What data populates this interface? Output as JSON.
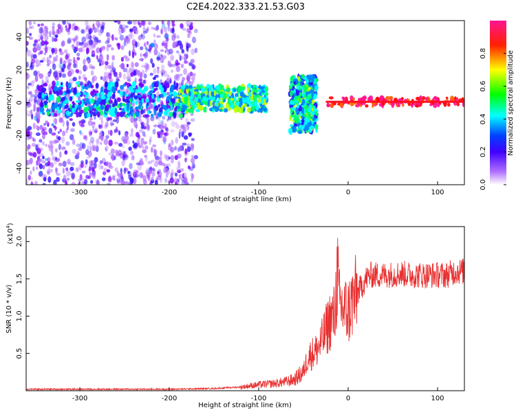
{
  "figure_title": "C2E4.2022.333.21.53.G03",
  "chart_data": [
    {
      "type": "heatmap",
      "title": "",
      "xlabel": "Height of straight line (km)",
      "ylabel": "Frequency (Hz)",
      "xlim": [
        -360,
        130
      ],
      "ylim": [
        -50,
        50
      ],
      "xticks": [
        -300,
        -200,
        -100,
        0,
        100
      ],
      "yticks": [
        -40,
        -20,
        0,
        20,
        40
      ],
      "grid": false,
      "colorbar": {
        "label": "Normalized spectral amplitude",
        "range": [
          0,
          1
        ],
        "ticks": [
          0.0,
          0.2,
          0.4,
          0.6,
          0.8
        ],
        "tick_labels": [
          "0.0",
          "0.2",
          "0.4",
          "0.6",
          "0.8"
        ],
        "colormap": [
          "#ffffff",
          "#8000ff",
          "#0000ff",
          "#00ffff",
          "#00ff00",
          "#ffff00",
          "#ff0000",
          "#ff1493"
        ]
      },
      "description_points": [
        {
          "x_range": [
            -360,
            -170
          ],
          "y_range": [
            -50,
            50
          ],
          "level": 0.15
        },
        {
          "x_range": [
            -345,
            -180
          ],
          "y_range": [
            -8,
            12
          ],
          "level": 0.35
        },
        {
          "x_range": [
            -190,
            -90
          ],
          "y_range": [
            -5,
            10
          ],
          "level": 0.5
        },
        {
          "x_range": [
            -65,
            -35
          ],
          "y_range": [
            -18,
            16
          ],
          "level": 0.45
        },
        {
          "x_range": [
            -25,
            130
          ],
          "y_range": [
            -2,
            3
          ],
          "level": 0.95
        }
      ]
    },
    {
      "type": "line",
      "title": "",
      "xlabel": "Height of straight line (km)",
      "ylabel": "SNR (10 * v/v)",
      "yscale_label": "(x10",
      "yscale_exp": "4",
      "yscale_close": ")",
      "xlim": [
        -360,
        130
      ],
      "ylim": [
        0,
        2.2
      ],
      "xticks": [
        -300,
        -200,
        -100,
        0,
        100
      ],
      "yticks": [
        0.5,
        1.0,
        1.5,
        2.0
      ],
      "ytick_labels": [
        "0.5",
        "1.0",
        "1.5",
        "2.0"
      ],
      "grid": false,
      "series": [
        {
          "color": "#e83030",
          "x": [
            -360,
            -300,
            -250,
            -200,
            -150,
            -120,
            -100,
            -80,
            -70,
            -60,
            -50,
            -45,
            -40,
            -35,
            -30,
            -25,
            -20,
            -15,
            -12,
            -10,
            -5,
            0,
            5,
            10,
            15,
            20,
            25,
            30,
            40,
            50,
            60,
            70,
            80,
            90,
            100,
            110,
            120,
            130
          ],
          "values": [
            0.02,
            0.02,
            0.02,
            0.02,
            0.03,
            0.05,
            0.08,
            0.1,
            0.12,
            0.15,
            0.25,
            0.45,
            0.5,
            0.55,
            0.65,
            0.8,
            0.95,
            1.0,
            1.6,
            1.15,
            1.1,
            1.05,
            1.2,
            1.3,
            1.4,
            1.5,
            1.55,
            1.55,
            1.55,
            1.56,
            1.57,
            1.55,
            1.55,
            1.55,
            1.55,
            1.55,
            1.6,
            1.6
          ]
        }
      ]
    }
  ]
}
